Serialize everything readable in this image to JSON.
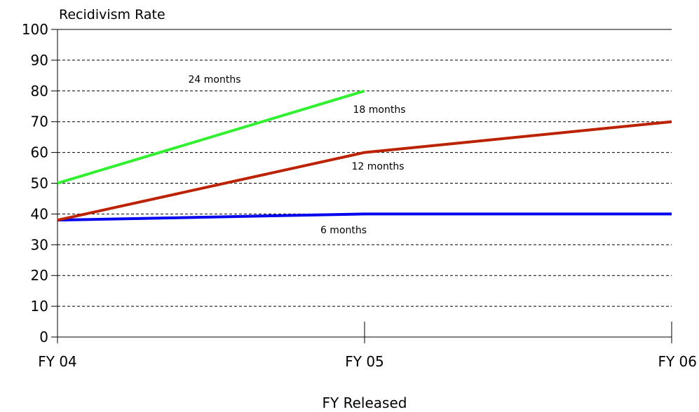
{
  "chart_data": {
    "type": "line",
    "title": "",
    "ylabel": "Recidivism Rate",
    "xlabel": "FY Released",
    "categories": [
      "FY 04",
      "FY 05",
      "FY 06"
    ],
    "ylim": [
      0,
      100
    ],
    "yticks": [
      0,
      10,
      20,
      30,
      40,
      50,
      60,
      70,
      80,
      90,
      100
    ],
    "grid": true,
    "legend": "inline labels",
    "series": [
      {
        "name": "6 months",
        "values": [
          38,
          40,
          40
        ],
        "color": "#0000ee"
      },
      {
        "name": "12 months",
        "values": [
          38,
          60,
          70
        ],
        "color": "#bb2200"
      },
      {
        "name": "18 months",
        "values": [
          50,
          80,
          null
        ],
        "color": "#33ee33"
      },
      {
        "name": "24 months",
        "values": [
          null,
          null,
          null
        ],
        "color": "#000000"
      }
    ]
  }
}
